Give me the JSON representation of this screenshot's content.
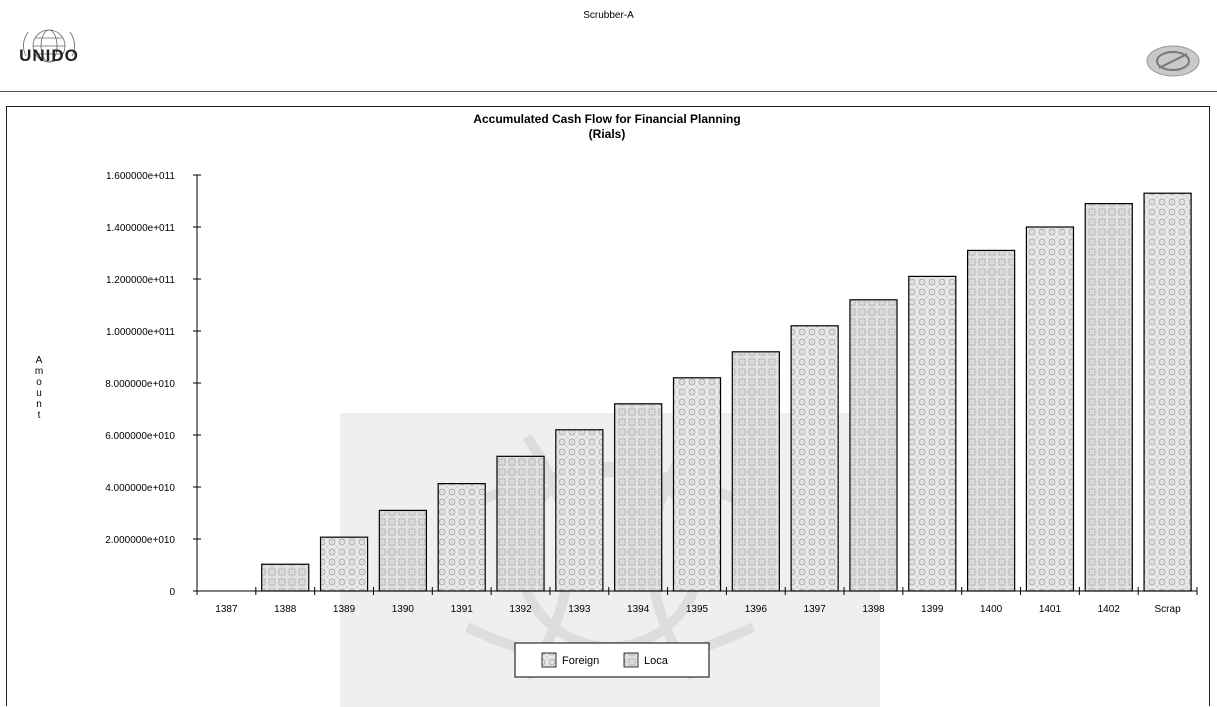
{
  "document": {
    "title": "Scrubber-A",
    "logo_left_text": "UNIDO"
  },
  "chart_data": {
    "type": "bar",
    "title": "Accumulated Cash Flow for Financial Planning",
    "subtitle": "(Rials)",
    "xlabel": "",
    "ylabel": "Amount",
    "categories": [
      "1387",
      "1388",
      "1389",
      "1390",
      "1391",
      "1392",
      "1393",
      "1394",
      "1395",
      "1396",
      "1397",
      "1398",
      "1399",
      "1400",
      "1401",
      "1402",
      "Scrap"
    ],
    "values": [
      0,
      10300000000,
      20700000000,
      31000000000,
      41300000000,
      51800000000,
      62000000000,
      72000000000,
      82000000000,
      92000000000,
      102000000000,
      112000000000,
      121000000000,
      131000000000,
      140000000000,
      149000000000,
      153000000000
    ],
    "ylim": [
      0,
      160000000000
    ],
    "yticks": [
      "0",
      "2.000000e+010",
      "4.000000e+010",
      "6.000000e+010",
      "8.000000e+010",
      "1.000000e+011",
      "1.200000e+011",
      "1.400000e+011",
      "1.600000e+011"
    ],
    "ytick_values": [
      0,
      20000000000,
      40000000000,
      60000000000,
      80000000000,
      100000000000,
      120000000000,
      140000000000,
      160000000000
    ],
    "legend": [
      "Foreign",
      "Loca"
    ],
    "legend_position": "bottom",
    "grid": false,
    "colors": {
      "bar_fill": "#d9d9d9",
      "bar_stroke": "#000000",
      "watermark": "#c8c8c8"
    }
  }
}
